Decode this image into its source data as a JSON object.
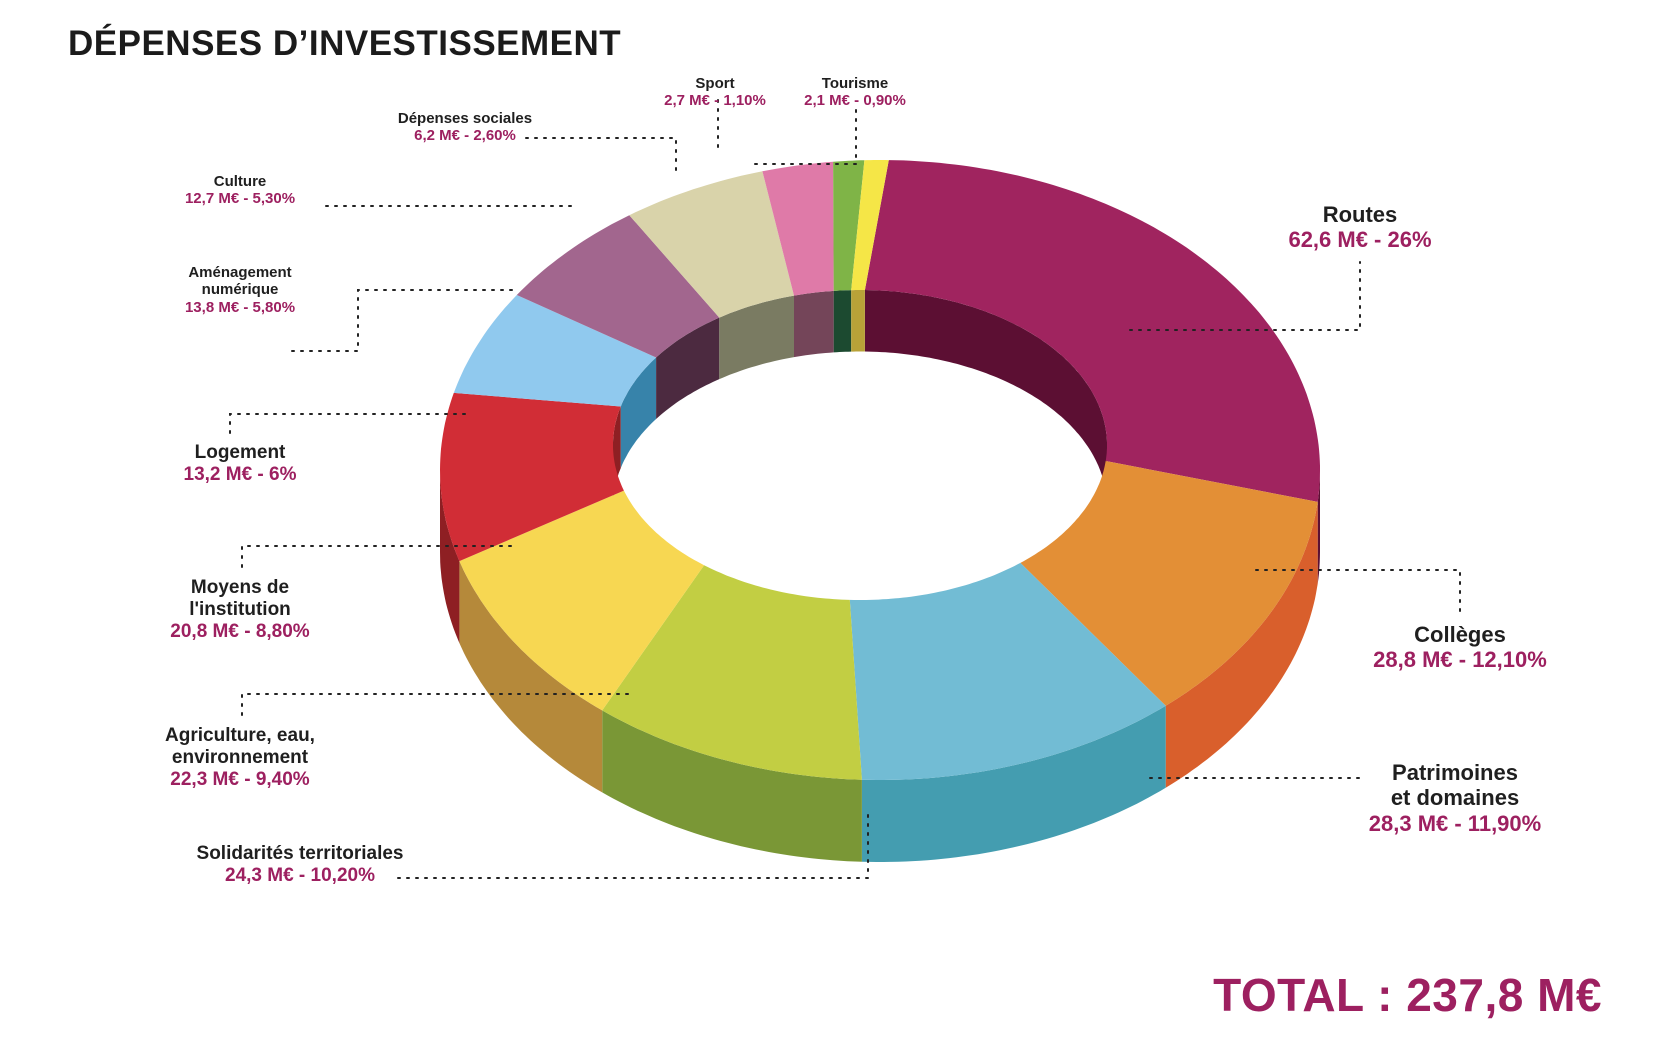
{
  "chart_data": {
    "type": "pie",
    "title": "DÉPENSES D’INVESTISSEMENT",
    "total_label": "TOTAL : 237,8 M€",
    "unit": "M€",
    "slices": [
      {
        "name": "Routes",
        "value": 62.6,
        "value_label": "62,6 M€ - 26%",
        "color": "#a0245f",
        "side": "#5c0f33"
      },
      {
        "name": "Collèges",
        "value": 28.8,
        "value_label": "28,8 M€ - 12,10%",
        "color": "#e38f36",
        "side": "#d95f2c"
      },
      {
        "name": "Patrimoines et domaines",
        "value": 28.3,
        "value_label": "28,3 M€ - 11,90%",
        "color": "#72bcd4",
        "side": "#449db0"
      },
      {
        "name": "Solidarités territoriales",
        "value": 24.3,
        "value_label": "24,3 M€ - 10,20%",
        "color": "#c2ce43",
        "side": "#7a9736"
      },
      {
        "name": "Agriculture, eau, environnement",
        "value": 22.3,
        "value_label": "22,3 M€ - 9,40%",
        "color": "#f7d752",
        "side": "#b5893a"
      },
      {
        "name": "Moyens de l'institution",
        "value": 20.8,
        "value_label": "20,8 M€ - 8,80%",
        "color": "#d12d36",
        "side": "#8e1f23"
      },
      {
        "name": "Logement",
        "value": 13.2,
        "value_label": "13,2 M€ - 6%",
        "color": "#90c9ee",
        "side": "#3783aa"
      },
      {
        "name": "Aménagement numérique",
        "value": 13.8,
        "value_label": "13,8 M€ - 5,80%",
        "color": "#a2668e",
        "side": "#4c2a40"
      },
      {
        "name": "Culture",
        "value": 12.7,
        "value_label": "12,7 M€ - 5,30%",
        "color": "#d9d3aa",
        "side": "#7a7b62"
      },
      {
        "name": "Dépenses sociales",
        "value": 6.2,
        "value_label": "6,2 M€ - 2,60%",
        "color": "#df7aa8",
        "side": "#744559"
      },
      {
        "name": "Sport",
        "value": 2.7,
        "value_label": "2,7 M€ - 1,10%",
        "color": "#7fb447",
        "side": "#1c4a30"
      },
      {
        "name": "Tourisme",
        "value": 2.1,
        "value_label": "2,1 M€ - 0,90%",
        "color": "#f5e647",
        "side": "#b8a238"
      }
    ]
  },
  "labels": {
    "routes": {
      "name": "Routes",
      "value": "62,6 M€ - 26%"
    },
    "colleges": {
      "name": "Collèges",
      "value": "28,8 M€ - 12,10%"
    },
    "patrimoines": {
      "name1": "Patrimoines",
      "name2": "et domaines",
      "value": "28,3 M€ - 11,90%"
    },
    "solidarites": {
      "name": "Solidarités territoriales",
      "value": "24,3 M€ - 10,20%"
    },
    "agriculture": {
      "name1": "Agriculture, eau,",
      "name2": "environnement",
      "value": "22,3 M€ - 9,40%"
    },
    "moyens": {
      "name1": "Moyens de",
      "name2": "l'institution",
      "value": "20,8 M€ - 8,80%"
    },
    "logement": {
      "name": "Logement",
      "value": "13,2 M€ - 6%"
    },
    "amenagement": {
      "name1": "Aménagement",
      "name2": "numérique",
      "value": "13,8 M€ - 5,80%"
    },
    "culture": {
      "name": "Culture",
      "value": "12,7 M€ - 5,30%"
    },
    "sociales": {
      "name": "Dépenses sociales",
      "value": "6,2 M€ - 2,60%"
    },
    "sport": {
      "name": "Sport",
      "value": "2,7 M€ - 1,10%"
    },
    "tourisme": {
      "name": "Tourisme",
      "value": "2,1 M€ - 0,90%"
    }
  }
}
